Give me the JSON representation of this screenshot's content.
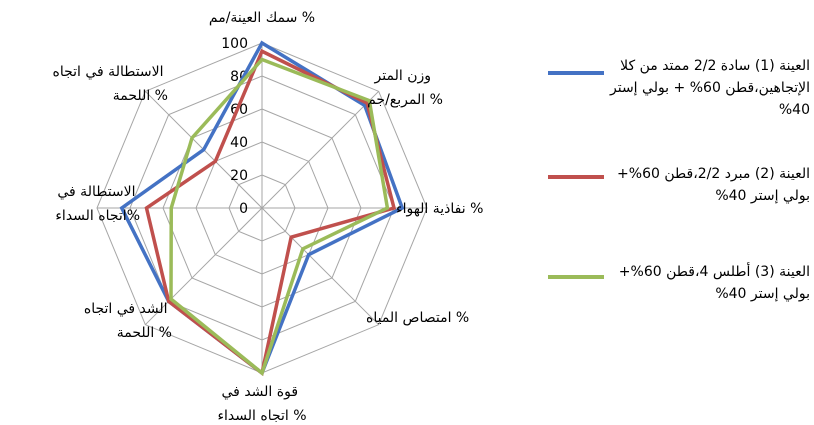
{
  "chart_data": {
    "type": "radar",
    "axes": [
      "سمك العينة/مم %",
      "وزن المتر المربع/جم %",
      "نفاذية الهواء %",
      "امتصاص المياه %",
      "قوة الشد في اتجاه السداء %",
      "الشد في اتجاه اللحمة %",
      "الاستطالة في اتجاه السداء%",
      "الاستطالة في اتجاه اللحمة %"
    ],
    "ticks": [
      "0",
      "20",
      "40",
      "60",
      "80",
      "100"
    ],
    "rlim": [
      0,
      100
    ],
    "grid": true,
    "legend_position": "right",
    "series": [
      {
        "name": "العينة (1) سادة 2/2 ممتد من كلا الإتجاهين،قطن 60% + بولي إستر 40%",
        "color": "#4472c4",
        "values": [
          100,
          88,
          85,
          40,
          100,
          80,
          85,
          50
        ]
      },
      {
        "name": "العينة (2) مبرد 2/2،قطن 60%+ بولي إستر 40%",
        "color": "#c0504d",
        "values": [
          95,
          90,
          80,
          25,
          100,
          80,
          70,
          40
        ]
      },
      {
        "name": "العينة (3) أطلس 4،قطن 60%+ بولي إستر 40%",
        "color": "#9bbb59",
        "values": [
          90,
          92,
          76,
          35,
          100,
          78,
          55,
          60
        ]
      }
    ]
  }
}
